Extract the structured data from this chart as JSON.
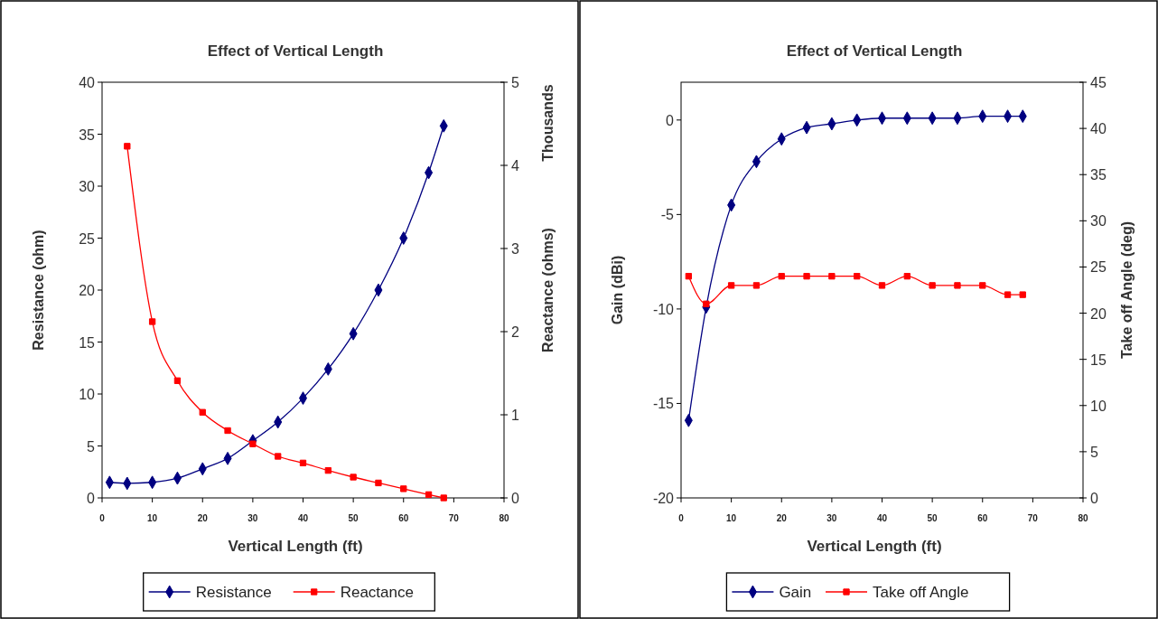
{
  "chart_data": [
    {
      "type": "line",
      "title": "Effect of Vertical Length",
      "xlabel": "Vertical Length (ft)",
      "ylabel": "Resistance (ohm)",
      "y2label": "Reactance (ohms)",
      "annotations": [
        "Thousands"
      ],
      "legend": "bottom",
      "grid": false,
      "xlim": [
        0,
        80
      ],
      "xticks": [
        0,
        10,
        20,
        30,
        40,
        50,
        60,
        70,
        80
      ],
      "ylim": [
        0,
        40
      ],
      "yticks": [
        0,
        5,
        10,
        15,
        20,
        25,
        30,
        35,
        40
      ],
      "y2lim": [
        0,
        5
      ],
      "y2ticks": [
        0,
        1,
        2,
        3,
        4,
        5
      ],
      "series": [
        {
          "name": "Resistance",
          "color": "#000080",
          "marker": "diamond",
          "x": [
            1.5,
            5,
            10,
            15,
            20,
            25,
            30,
            35,
            40,
            45,
            50,
            55,
            60,
            65,
            68
          ],
          "values": [
            1.5,
            1.4,
            1.5,
            1.9,
            2.8,
            3.8,
            5.5,
            7.3,
            9.6,
            12.4,
            15.8,
            20,
            25,
            31.3,
            35.8
          ]
        },
        {
          "name": "Reactance",
          "color": "#ff0000",
          "marker": "square",
          "axis": "y2",
          "x": [
            5,
            10,
            15,
            20,
            25,
            30,
            35,
            40,
            45,
            50,
            55,
            60,
            65,
            68
          ],
          "values": [
            4.23,
            2.12,
            1.41,
            1.03,
            0.81,
            0.65,
            0.5,
            0.42,
            0.33,
            0.25,
            0.18,
            0.11,
            0.04,
            0
          ]
        }
      ]
    },
    {
      "type": "line",
      "title": "Effect of Vertical Length",
      "xlabel": "Vertical Length (ft)",
      "ylabel": "Gain (dBi)",
      "y2label": "Take off Angle (deg)",
      "legend": "bottom",
      "grid": false,
      "xlim": [
        0,
        80
      ],
      "xticks": [
        0,
        10,
        20,
        30,
        40,
        50,
        60,
        70,
        80
      ],
      "ylim": [
        -20,
        2
      ],
      "yticks": [
        -20,
        -15,
        -10,
        -5,
        0
      ],
      "y2lim": [
        0,
        45
      ],
      "y2ticks": [
        0,
        5,
        10,
        15,
        20,
        25,
        30,
        35,
        40,
        45
      ],
      "series": [
        {
          "name": "Gain",
          "color": "#000080",
          "marker": "diamond",
          "x": [
            1.5,
            5,
            10,
            15,
            20,
            25,
            30,
            35,
            40,
            45,
            50,
            55,
            60,
            65,
            68
          ],
          "values": [
            -15.9,
            -9.9,
            -4.5,
            -2.2,
            -1.0,
            -0.4,
            -0.2,
            0.0,
            0.1,
            0.1,
            0.1,
            0.1,
            0.2,
            0.2,
            0.2
          ]
        },
        {
          "name": "Take off Angle",
          "color": "#ff0000",
          "marker": "square",
          "axis": "y2",
          "x": [
            1.5,
            5,
            10,
            15,
            20,
            25,
            30,
            35,
            40,
            45,
            50,
            55,
            60,
            65,
            68
          ],
          "values": [
            24,
            21,
            23,
            23,
            24,
            24,
            24,
            24,
            23,
            24,
            23,
            23,
            23,
            22,
            22
          ]
        }
      ]
    }
  ]
}
